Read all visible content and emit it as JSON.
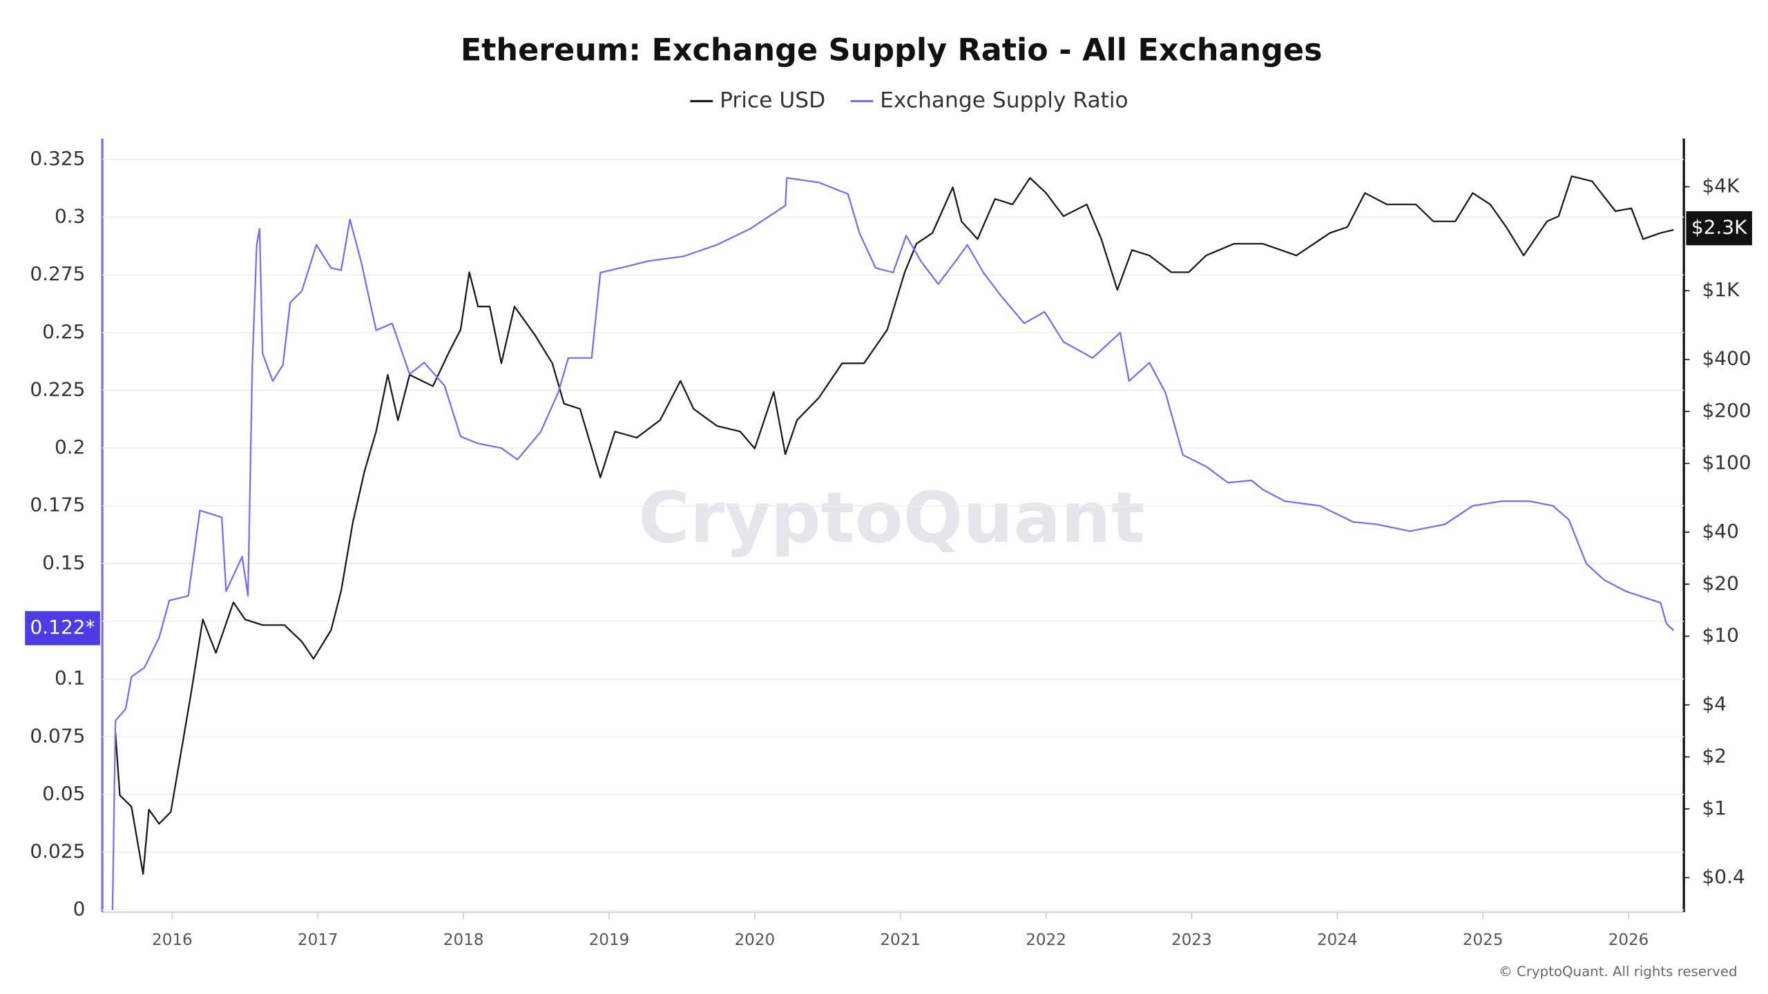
{
  "chart_data": {
    "type": "line",
    "title": "Ethereum: Exchange Supply Ratio - All Exchanges",
    "watermark": "CryptoQuant",
    "footer": "© CryptoQuant. All rights reserved",
    "xlim": [
      2015.52,
      2026.38
    ],
    "xticks": [
      2016,
      2017,
      2018,
      2019,
      2020,
      2021,
      2022,
      2023,
      2024,
      2025,
      2026
    ],
    "ylim": [
      0,
      0.334
    ],
    "yticks": [
      0,
      0.025,
      0.05,
      0.075,
      0.1,
      0.125,
      0.15,
      0.175,
      0.2,
      0.225,
      0.25,
      0.275,
      0.3,
      0.325
    ],
    "y2lim": [
      0.26,
      7600
    ],
    "y2_log": true,
    "y2ticks": [
      {
        "value": 0.4,
        "label": "$0.4"
      },
      {
        "value": 1,
        "label": "$1"
      },
      {
        "value": 2,
        "label": "$2"
      },
      {
        "value": 4,
        "label": "$4"
      },
      {
        "value": 10,
        "label": "$10"
      },
      {
        "value": 20,
        "label": "$20"
      },
      {
        "value": 40,
        "label": "$40"
      },
      {
        "value": 100,
        "label": "$100"
      },
      {
        "value": 200,
        "label": "$200"
      },
      {
        "value": 400,
        "label": "$400"
      },
      {
        "value": 1000,
        "label": "$1K"
      },
      {
        "value": 4000,
        "label": "$4K"
      }
    ],
    "grid": true,
    "current_labels": [
      {
        "axis": "y",
        "value": 0.122,
        "label": "0.122*",
        "color": "#4b3ce6"
      },
      {
        "axis": "y2",
        "value": 2300,
        "label": "$2.3K",
        "color": "#111111"
      }
    ],
    "series": [
      {
        "name": "Price USD",
        "color": "#1a1a1a",
        "axis": "y2",
        "x": [
          2015.61,
          2015.64,
          2015.72,
          2015.8,
          2015.84,
          2015.91,
          2015.99,
          2016.07,
          2016.13,
          2016.21,
          2016.3,
          2016.42,
          2016.5,
          2016.62,
          2016.77,
          2016.89,
          2016.97,
          2017.09,
          2017.16,
          2017.24,
          2017.32,
          2017.4,
          2017.48,
          2017.55,
          2017.63,
          2017.79,
          2017.9,
          2017.98,
          2018.04,
          2018.1,
          2018.18,
          2018.26,
          2018.35,
          2018.49,
          2018.61,
          2018.69,
          2018.8,
          2018.94,
          2019.04,
          2019.19,
          2019.35,
          2019.49,
          2019.58,
          2019.74,
          2019.9,
          2020.0,
          2020.13,
          2020.21,
          2020.29,
          2020.44,
          2020.6,
          2020.75,
          2020.91,
          2021.03,
          2021.11,
          2021.22,
          2021.36,
          2021.42,
          2021.53,
          2021.65,
          2021.77,
          2021.89,
          2022.0,
          2022.12,
          2022.28,
          2022.38,
          2022.49,
          2022.59,
          2022.71,
          2022.86,
          2022.98,
          2023.1,
          2023.29,
          2023.49,
          2023.72,
          2023.95,
          2024.07,
          2024.19,
          2024.34,
          2024.54,
          2024.66,
          2024.81,
          2024.93,
          2025.05,
          2025.16,
          2025.28,
          2025.44,
          2025.52,
          2025.61,
          2025.75,
          2025.91,
          2026.02,
          2026.1,
          2026.22,
          2026.31
        ],
        "values": [
          2.76,
          1.2,
          1.03,
          0.42,
          0.99,
          0.82,
          0.96,
          2.37,
          4.7,
          12.5,
          8.0,
          15.7,
          12.5,
          11.6,
          11.6,
          9.3,
          7.4,
          10.8,
          18.3,
          45.5,
          89.9,
          153,
          326,
          178,
          326,
          280,
          440,
          595,
          1280,
          810,
          810,
          380,
          810,
          555,
          380,
          222,
          207,
          83,
          153,
          141,
          178,
          301,
          207,
          165,
          153,
          122,
          260,
          113,
          178,
          240,
          380,
          380,
          595,
          1280,
          1870,
          2160,
          3970,
          2520,
          1990,
          3400,
          3160,
          4500,
          3680,
          2700,
          3160,
          1990,
          1010,
          1720,
          1600,
          1280,
          1280,
          1600,
          1870,
          1870,
          1600,
          2160,
          2340,
          3680,
          3160,
          3160,
          2520,
          2520,
          3680,
          3160,
          2340,
          1600,
          2520,
          2700,
          4600,
          4300,
          2890,
          3000,
          1990,
          2160,
          2250
        ]
      },
      {
        "name": "Exchange Supply Ratio",
        "color": "#7b6cf0",
        "axis": "y",
        "x": [
          2015.59,
          2015.61,
          2015.68,
          2015.72,
          2015.81,
          2015.91,
          2015.98,
          2016.11,
          2016.19,
          2016.34,
          2016.37,
          2016.48,
          2016.52,
          2016.55,
          2016.58,
          2016.6,
          2016.62,
          2016.69,
          2016.76,
          2016.81,
          2016.89,
          2016.99,
          2017.09,
          2017.16,
          2017.22,
          2017.3,
          2017.4,
          2017.51,
          2017.63,
          2017.73,
          2017.87,
          2017.98,
          2018.1,
          2018.26,
          2018.37,
          2018.53,
          2018.65,
          2018.72,
          2018.88,
          2018.94,
          2019.08,
          2019.27,
          2019.51,
          2019.74,
          2019.97,
          2020.21,
          2020.22,
          2020.44,
          2020.64,
          2020.72,
          2020.83,
          2020.95,
          2021.04,
          2021.14,
          2021.26,
          2021.38,
          2021.46,
          2021.57,
          2021.69,
          2021.85,
          2021.99,
          2022.12,
          2022.32,
          2022.51,
          2022.57,
          2022.71,
          2022.82,
          2022.94,
          2023.1,
          2023.25,
          2023.41,
          2023.49,
          2023.64,
          2023.88,
          2024.11,
          2024.27,
          2024.5,
          2024.74,
          2024.93,
          2025.13,
          2025.32,
          2025.48,
          2025.59,
          2025.71,
          2025.83,
          2025.98,
          2026.22,
          2026.26,
          2026.31
        ],
        "values": [
          0,
          0.082,
          0.087,
          0.101,
          0.105,
          0.118,
          0.134,
          0.136,
          0.173,
          0.17,
          0.138,
          0.153,
          0.136,
          0.236,
          0.288,
          0.295,
          0.241,
          0.229,
          0.236,
          0.263,
          0.268,
          0.288,
          0.278,
          0.277,
          0.299,
          0.28,
          0.251,
          0.254,
          0.232,
          0.237,
          0.227,
          0.205,
          0.202,
          0.2,
          0.195,
          0.207,
          0.224,
          0.239,
          0.239,
          0.276,
          0.278,
          0.281,
          0.283,
          0.288,
          0.295,
          0.305,
          0.317,
          0.315,
          0.31,
          0.293,
          0.278,
          0.276,
          0.292,
          0.281,
          0.271,
          0.281,
          0.288,
          0.276,
          0.266,
          0.254,
          0.259,
          0.246,
          0.239,
          0.25,
          0.229,
          0.237,
          0.224,
          0.197,
          0.192,
          0.185,
          0.186,
          0.182,
          0.177,
          0.175,
          0.168,
          0.167,
          0.164,
          0.167,
          0.175,
          0.177,
          0.177,
          0.175,
          0.169,
          0.15,
          0.143,
          0.138,
          0.133,
          0.124,
          0.121
        ]
      }
    ]
  }
}
